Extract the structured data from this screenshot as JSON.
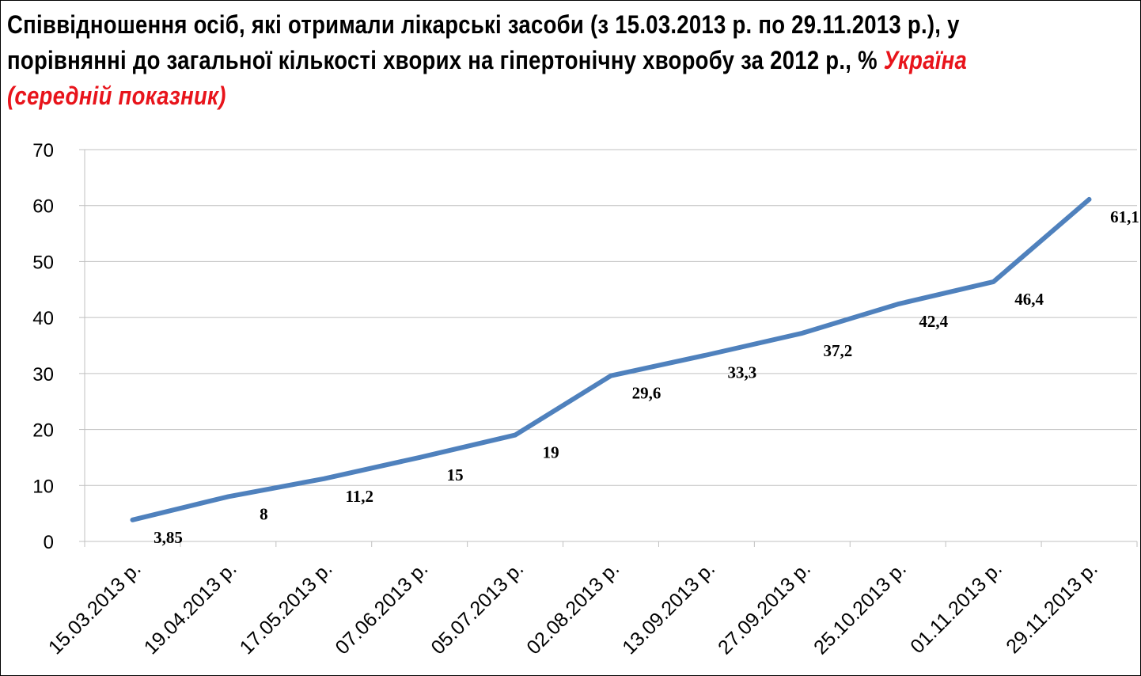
{
  "title": {
    "main": "Співвідношення осіб, які отримали лікарські засоби (з 15.03.2013 р. по 29.11.2013 р.), у порівнянні до загальної кількості хворих на гіпертонічну хворобу за 2012 р., % ",
    "highlight": "Україна (середній показник)"
  },
  "colors": {
    "line": "#4f81bd",
    "grid": "#c0c0c0",
    "highlight": "#e8141b"
  },
  "chart_data": {
    "type": "line",
    "categories": [
      "15.03.2013 р.",
      "19.04.2013 р.",
      "17.05.2013 р.",
      "07.06.2013 р.",
      "05.07.2013 р.",
      "02.08.2013 р.",
      "13.09.2013 р.",
      "27.09.2013 р.",
      "25.10.2013 р.",
      "01.11.2013 р.",
      "29.11.2013 р."
    ],
    "series": [
      {
        "values": [
          3.85,
          8,
          11.2,
          15,
          19,
          29.6,
          33.3,
          37.2,
          42.4,
          46.4,
          61.1
        ],
        "labels": [
          "3,85",
          "8",
          "11,2",
          "15",
          "19",
          "29,6",
          "33,3",
          "37,2",
          "42,4",
          "46,4",
          "61,1"
        ]
      }
    ],
    "yticks": [
      "0",
      "10",
      "20",
      "30",
      "40",
      "50",
      "60",
      "70"
    ],
    "ylim": [
      0,
      70
    ],
    "grid": true,
    "legend": "none"
  }
}
